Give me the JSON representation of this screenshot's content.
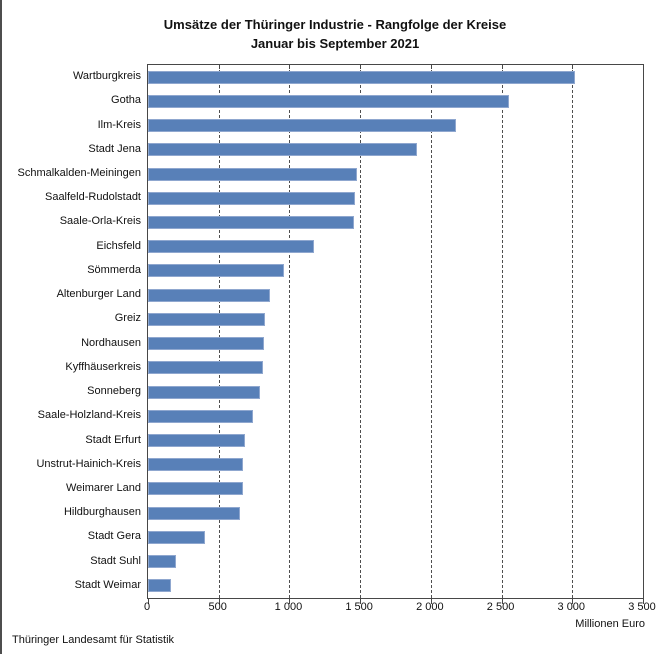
{
  "page": {
    "title_line1": "Umsätze der Thüringer Industrie - Rangfolge der Kreise",
    "title_line2": "Januar bis September 2021",
    "footer": "Thüringer Landesamt für Statistik"
  },
  "chart_data": {
    "type": "bar",
    "orientation": "horizontal",
    "title": "Umsätze der Thüringer Industrie - Rangfolge der Kreise Januar bis September 2021",
    "xlabel": "Millionen Euro",
    "xlim": [
      0,
      3500
    ],
    "x_ticks": [
      0,
      500,
      1000,
      1500,
      2000,
      2500,
      3000,
      3500
    ],
    "x_tick_labels": [
      "0",
      "500",
      "1 000",
      "1 500",
      "2 000",
      "2 500",
      "3 000",
      "3 500"
    ],
    "grid": "vertical-dashed",
    "legend": "none",
    "categories": [
      "Wartburgkreis",
      "Gotha",
      "Ilm-Kreis",
      "Stadt Jena",
      "Schmalkalden-Meiningen",
      "Saalfeld-Rudolstadt",
      "Saale-Orla-Kreis",
      "Eichsfeld",
      "Sömmerda",
      "Altenburger Land",
      "Greiz",
      "Nordhausen",
      "Kyffhäuserkreis",
      "Sonneberg",
      "Saale-Holzland-Kreis",
      "Stadt Erfurt",
      "Unstrut-Hainich-Kreis",
      "Weimarer Land",
      "Hildburghausen",
      "Stadt Gera",
      "Stadt Suhl",
      "Stadt Weimar"
    ],
    "values": [
      3020,
      2555,
      2180,
      1905,
      1475,
      1465,
      1455,
      1175,
      960,
      860,
      830,
      820,
      810,
      790,
      740,
      685,
      675,
      670,
      650,
      405,
      195,
      165
    ],
    "bar_color": "#5880b8",
    "bar_border_color": "#8fa7cf",
    "axis_color": "#474747",
    "gridline_color": "#4f4f4f"
  }
}
